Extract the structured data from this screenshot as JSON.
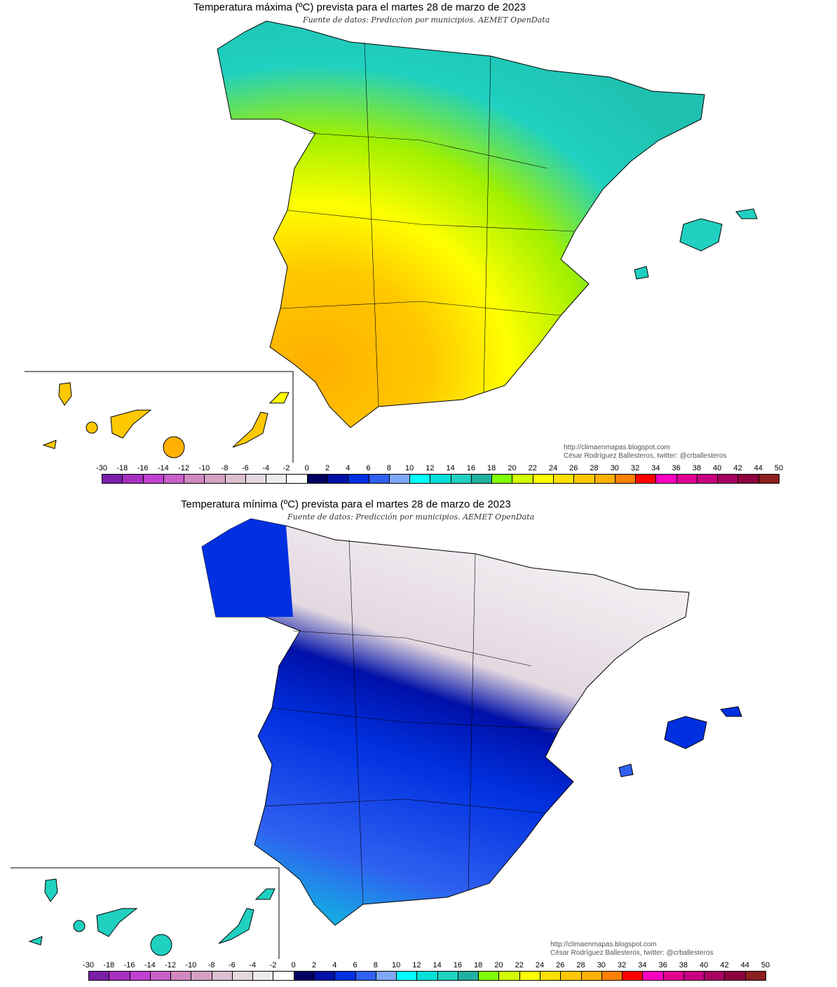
{
  "maps": [
    {
      "title": "Temperatura máxima (ºC) prevista para el martes 28 de marzo de 2023",
      "subtitle": "Fuente de datos: Prediccion por municipios. AEMET OpenData",
      "credit_url": "http://climaenmapas.blogspot.com",
      "credit_author": "César Rodríguez Ballesteros, twitter: @crballesteros",
      "dominant_colors": [
        "#ffc800",
        "#ffff00",
        "#80ff00",
        "#20d0c0"
      ]
    },
    {
      "title": "Temperatura mínima (ºC) prevista para el martes 28 de marzo de 2023",
      "subtitle": "Fuente de datos: Predicción por municipios. AEMET OpenData",
      "credit_url": "http://climaenmapas.blogspot.com",
      "credit_author": "César Rodríguez Ballesteros, twitter: @crballesteros",
      "dominant_colors": [
        "#0010a8",
        "#3060f0",
        "#00ffff",
        "#e4d8e0"
      ]
    }
  ],
  "legend": {
    "labels": [
      "-30",
      "-18",
      "-16",
      "-14",
      "-12",
      "-10",
      "-8",
      "-6",
      "-4",
      "-2",
      "0",
      "2",
      "4",
      "6",
      "8",
      "10",
      "12",
      "14",
      "16",
      "18",
      "20",
      "22",
      "24",
      "26",
      "28",
      "30",
      "32",
      "34",
      "36",
      "38",
      "40",
      "42",
      "44",
      "50"
    ],
    "colors": [
      "#7a1fa8",
      "#a730c0",
      "#c040d0",
      "#c860c8",
      "#d088c0",
      "#d4a0c4",
      "#dcc0d0",
      "#e4d8e0",
      "#ececec",
      "#ffffff",
      "#000060",
      "#0010a8",
      "#0030e0",
      "#3060f0",
      "#80a8f8",
      "#00ffff",
      "#00e0d8",
      "#20d0c0",
      "#20b0a0",
      "#80ff00",
      "#d0ff00",
      "#ffff00",
      "#ffe000",
      "#ffc800",
      "#ffb000",
      "#ff8000",
      "#ff0000",
      "#ff00c0",
      "#e00090",
      "#c80080",
      "#a80060",
      "#900040",
      "#8a2020"
    ]
  }
}
